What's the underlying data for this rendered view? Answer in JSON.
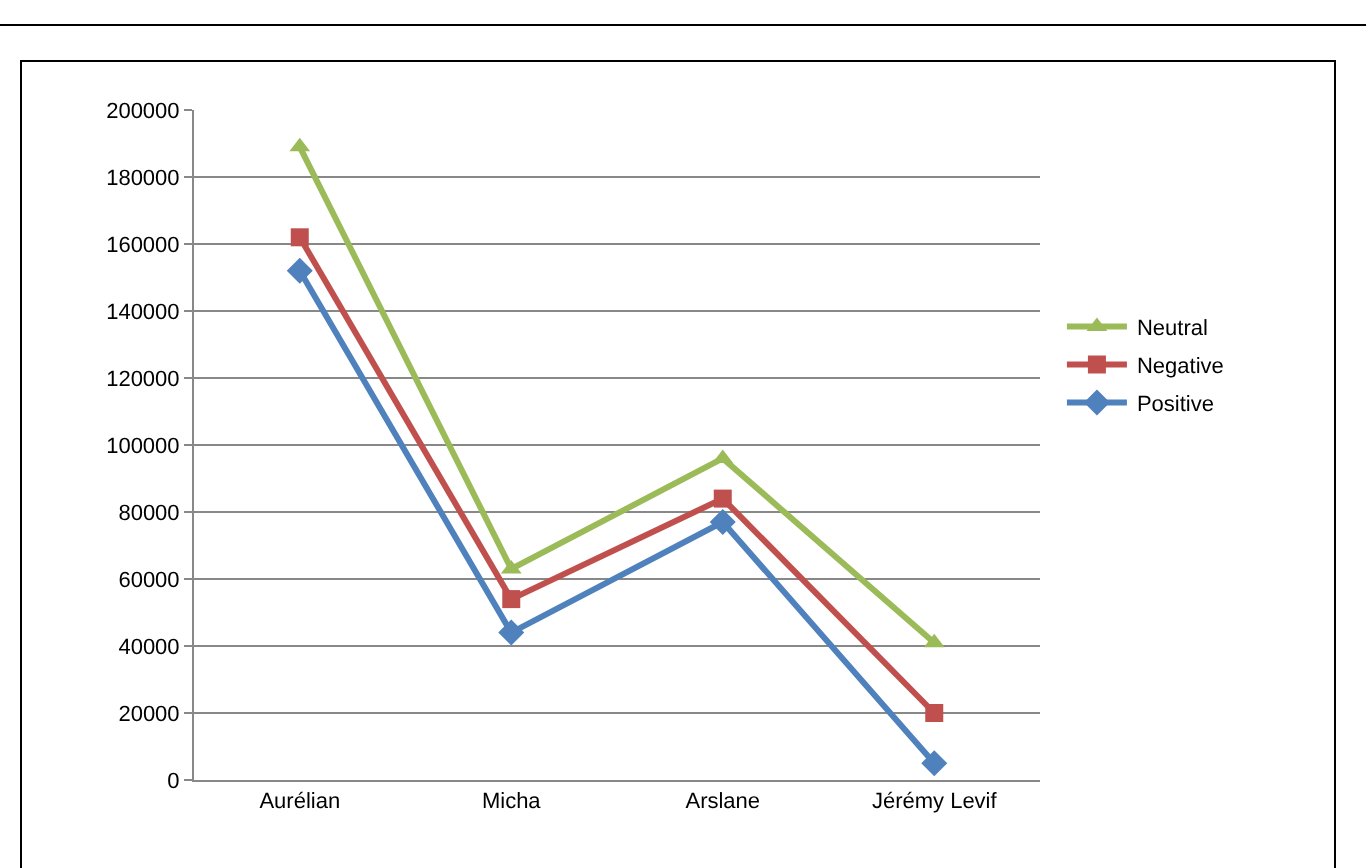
{
  "chart_data": {
    "type": "line",
    "categories": [
      "Aurélian",
      "Micha",
      "Arslane",
      "Jérémy Levif"
    ],
    "series": [
      {
        "name": "Neutral",
        "color": "#9bbb59",
        "marker": "triangle",
        "values": [
          189000,
          63000,
          96000,
          41000
        ]
      },
      {
        "name": "Negative",
        "color": "#c0504d",
        "marker": "square",
        "values": [
          162000,
          54000,
          84000,
          20000
        ]
      },
      {
        "name": "Positive",
        "color": "#4f81bd",
        "marker": "diamond",
        "values": [
          152000,
          44000,
          77000,
          5000
        ]
      }
    ],
    "ylim": [
      0,
      200000
    ],
    "yticks": [
      0,
      20000,
      40000,
      60000,
      80000,
      100000,
      120000,
      140000,
      160000,
      180000,
      200000
    ],
    "grid": "y",
    "legend": "right",
    "line_style": "solid"
  }
}
